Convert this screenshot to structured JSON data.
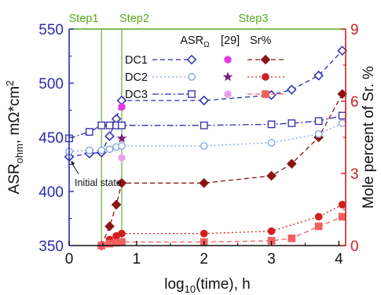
{
  "chart_data": {
    "type": "line",
    "x_axis": {
      "label_prefix": "log",
      "label_sub": "10",
      "label_suffix": "(time), h",
      "ticks": [
        0,
        1,
        2,
        3,
        4
      ],
      "xlim": [
        0,
        4.1
      ]
    },
    "y_left": {
      "label_main": "ASR",
      "label_sub": "ohm",
      "label_suffix": ", mΩ*cm",
      "label_sup": "2",
      "ticks": [
        350,
        400,
        450,
        500,
        550
      ],
      "ylim": [
        350,
        550
      ],
      "color": "#2b2bb0"
    },
    "y_right": {
      "label": "Mole percent of Sr. %",
      "ticks": [
        0,
        3,
        6,
        9
      ],
      "ylim": [
        0,
        9
      ],
      "color": "#d11f1f"
    },
    "steps": {
      "labels": [
        "Step1",
        "Step2",
        "Step3"
      ],
      "boundaries": [
        0.48,
        0.78
      ],
      "color": "#5aa61e"
    },
    "annotation": {
      "text": "Initial state",
      "x": 0,
      "y": 432
    },
    "legend": {
      "header_asr_main": "ASR",
      "header_asr_sub": "Ω",
      "header_ref": "[29]",
      "header_sr": "Sr%",
      "rows": [
        "DC1",
        "DC2",
        "DC3"
      ]
    },
    "asr_series": [
      {
        "name": "DC1",
        "marker": "diamond-open",
        "dash": "6,4",
        "color": "#2b2bb0",
        "x": [
          0,
          0.3,
          0.48,
          0.6,
          0.7,
          0.78,
          2.0,
          3.0,
          3.3,
          3.7,
          4.05
        ],
        "y": [
          432,
          435,
          436,
          451,
          467,
          484,
          484,
          489,
          494,
          507,
          530
        ]
      },
      {
        "name": "DC2",
        "marker": "circle-open",
        "dash": "2,3",
        "color": "#7da0de",
        "x": [
          0,
          0.3,
          0.48,
          0.6,
          0.7,
          0.78,
          2.0,
          3.0,
          3.7,
          4.05
        ],
        "y": [
          437,
          438,
          438,
          439,
          441,
          442,
          442,
          445,
          453,
          463
        ]
      },
      {
        "name": "DC3",
        "marker": "square-open",
        "dash": "8,3,2,3",
        "color": "#2b2bb0",
        "x": [
          0,
          0.3,
          0.48,
          0.6,
          0.7,
          0.78,
          2.0,
          3.0,
          3.3,
          3.7,
          4.05
        ],
        "y": [
          449,
          455,
          461,
          461,
          461,
          461,
          461,
          462,
          463,
          465,
          470
        ]
      }
    ],
    "ref_points": [
      {
        "name": "DC1",
        "marker": "hexagon",
        "color": "#e23be0",
        "x": 0.78,
        "y": 478
      },
      {
        "name": "DC2",
        "marker": "star",
        "color": "#7b1f7b",
        "x": 0.78,
        "y": 449
      },
      {
        "name": "DC3",
        "marker": "hexagon",
        "color": "#e8a0e8",
        "x": 0.78,
        "y": 431
      }
    ],
    "sr_series": [
      {
        "name": "DC1",
        "marker": "diamond",
        "dash": "6,4",
        "color": "#8b1515",
        "x": [
          0.48,
          0.6,
          0.7,
          0.78,
          2.0,
          3.0,
          3.3,
          3.7,
          4.05
        ],
        "y": [
          0,
          0.8,
          1.7,
          2.6,
          2.6,
          2.9,
          3.4,
          4.5,
          6.3
        ]
      },
      {
        "name": "DC2",
        "marker": "circle",
        "dash": "2,3",
        "color": "#d11f1f",
        "x": [
          0.48,
          0.6,
          0.7,
          0.78,
          2.0,
          3.0,
          3.7,
          4.05
        ],
        "y": [
          0,
          0.25,
          0.4,
          0.5,
          0.5,
          0.6,
          1.2,
          1.7
        ]
      },
      {
        "name": "DC3",
        "marker": "square",
        "dash": "6,4",
        "color": "#f06060",
        "x": [
          0.48,
          0.6,
          0.7,
          0.78,
          2.0,
          3.0,
          3.3,
          3.7,
          4.05
        ],
        "y": [
          0,
          0.08,
          0.12,
          0.15,
          0.15,
          0.2,
          0.3,
          0.8,
          1.2
        ]
      }
    ]
  }
}
